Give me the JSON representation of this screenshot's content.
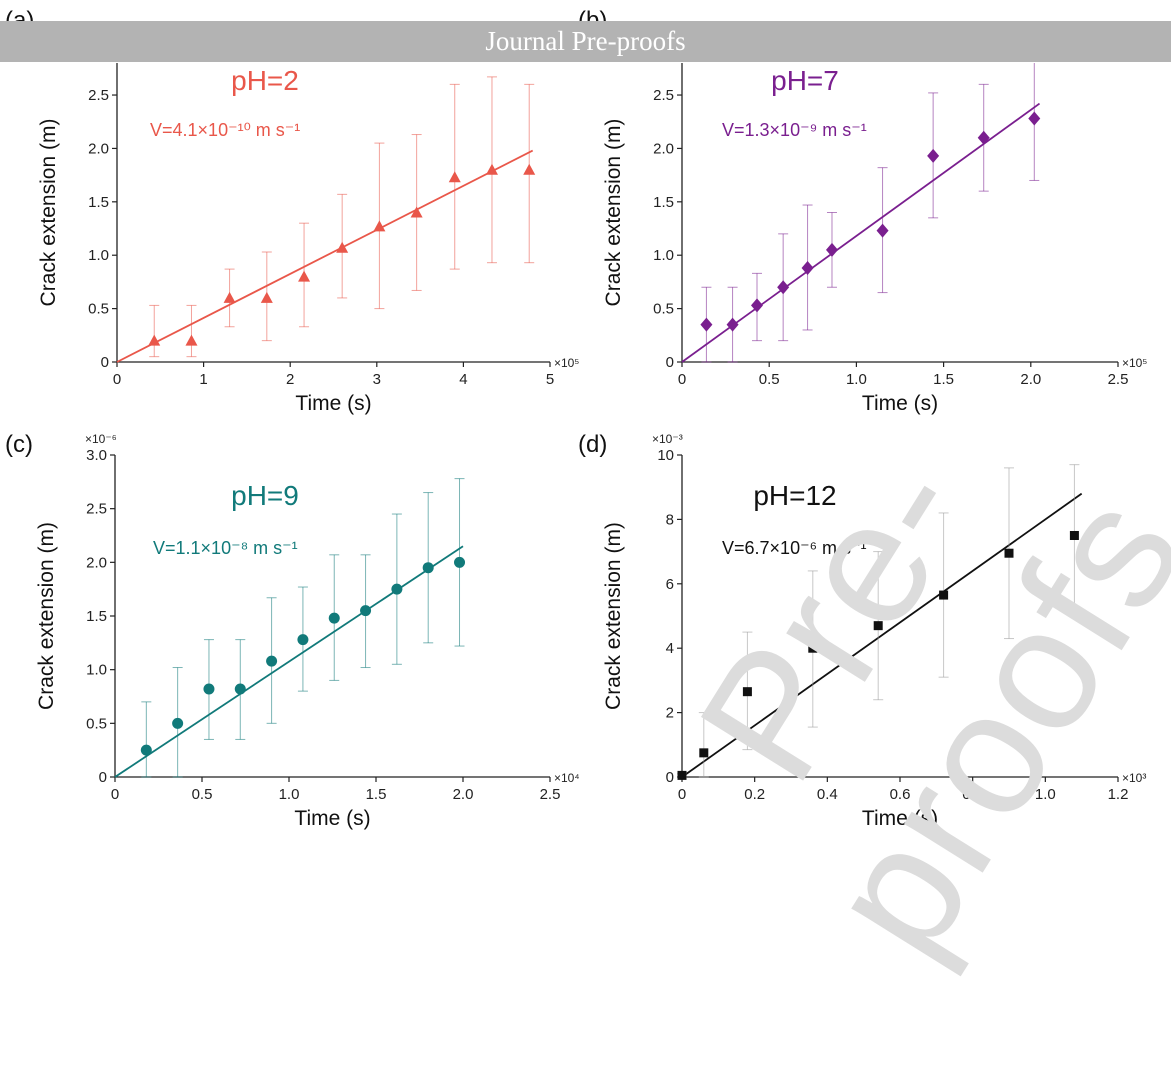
{
  "banner": "Journal Pre-proofs",
  "watermark": "Pre-proofs",
  "chart_data": [
    {
      "panel": "(a)",
      "type": "scatter",
      "annotation_title": "pH=2",
      "annotation_velocity": "V=4.1×10⁻¹⁰ m s⁻¹",
      "color": "#e9574a",
      "marker": "triangle",
      "xlabel": "Time (s)",
      "ylabel": "Crack extension (m)",
      "x_multiplier": "×10⁵",
      "y_multiplier": "",
      "xlim": [
        0,
        5
      ],
      "ylim": [
        0,
        2.8
      ],
      "xticks": [
        "0",
        "1",
        "2",
        "3",
        "4",
        "5"
      ],
      "yticks": [
        "0",
        "0.5",
        "1.0",
        "1.5",
        "2.0",
        "2.5"
      ],
      "xtick_values": [
        0,
        1,
        2,
        3,
        4,
        5
      ],
      "ytick_values": [
        0,
        0.5,
        1.0,
        1.5,
        2.0,
        2.5
      ],
      "points": {
        "x": [
          0.43,
          0.86,
          1.3,
          1.73,
          2.16,
          2.6,
          3.03,
          3.46,
          3.9,
          4.33,
          4.76
        ],
        "y": [
          0.2,
          0.2,
          0.6,
          0.6,
          0.8,
          1.07,
          1.27,
          1.4,
          1.73,
          1.8,
          1.8
        ],
        "yerr_low": [
          0.05,
          0.05,
          0.33,
          0.2,
          0.33,
          0.6,
          0.5,
          0.67,
          0.87,
          0.93,
          0.93
        ],
        "yerr_high": [
          0.53,
          0.53,
          0.87,
          1.03,
          1.3,
          1.57,
          2.05,
          2.13,
          2.6,
          2.67,
          2.6
        ]
      },
      "fit_line": {
        "x": [
          0,
          4.8
        ],
        "y": [
          0,
          1.98
        ]
      }
    },
    {
      "panel": "(b)",
      "type": "scatter",
      "annotation_title": "pH=7",
      "annotation_velocity": "V=1.3×10⁻⁹ m s⁻¹",
      "color": "#7a1f8f",
      "marker": "diamond",
      "xlabel": "Time (s)",
      "ylabel": "Crack extension (m)",
      "x_multiplier": "×10⁵",
      "y_multiplier": "",
      "xlim": [
        0,
        2.5
      ],
      "ylim": [
        0,
        2.8
      ],
      "xticks": [
        "0",
        "0.5",
        "1.0",
        "1.5",
        "2.0",
        "2.5"
      ],
      "yticks": [
        "0",
        "0.5",
        "1.0",
        "1.5",
        "2.0",
        "2.5"
      ],
      "xtick_values": [
        0,
        0.5,
        1.0,
        1.5,
        2.0,
        2.5
      ],
      "ytick_values": [
        0,
        0.5,
        1.0,
        1.5,
        2.0,
        2.5
      ],
      "points": {
        "x": [
          0.14,
          0.29,
          0.43,
          0.58,
          0.72,
          0.86,
          1.15,
          1.44,
          1.73,
          2.02
        ],
        "y": [
          0.35,
          0.35,
          0.53,
          0.7,
          0.88,
          1.05,
          1.23,
          1.93,
          2.1,
          2.28
        ],
        "yerr_low": [
          0.0,
          0.0,
          0.2,
          0.2,
          0.3,
          0.7,
          0.65,
          1.35,
          1.6,
          1.7
        ],
        "yerr_high": [
          0.7,
          0.7,
          0.83,
          1.2,
          1.47,
          1.4,
          1.82,
          2.52,
          2.6,
          2.85
        ]
      },
      "fit_line": {
        "x": [
          0,
          2.05
        ],
        "y": [
          0,
          2.42
        ]
      }
    },
    {
      "panel": "(c)",
      "type": "scatter",
      "annotation_title": "pH=9",
      "annotation_velocity": "V=1.1×10⁻⁸ m s⁻¹",
      "color": "#117a7a",
      "marker": "circle",
      "xlabel": "Time (s)",
      "ylabel": "Crack extension (m)",
      "x_multiplier": "×10⁴",
      "y_multiplier": "×10⁻⁶",
      "xlim": [
        0,
        2.5
      ],
      "ylim": [
        0,
        3.0
      ],
      "xticks": [
        "0",
        "0.5",
        "1.0",
        "1.5",
        "2.0",
        "2.5"
      ],
      "yticks": [
        "0",
        "0.5",
        "1.0",
        "1.5",
        "2.0",
        "2.5",
        "3.0"
      ],
      "xtick_values": [
        0,
        0.5,
        1.0,
        1.5,
        2.0,
        2.5
      ],
      "ytick_values": [
        0,
        0.5,
        1.0,
        1.5,
        2.0,
        2.5,
        3.0
      ],
      "points": {
        "x": [
          0.18,
          0.36,
          0.54,
          0.72,
          0.9,
          1.08,
          1.26,
          1.44,
          1.62,
          1.8,
          1.98
        ],
        "y": [
          0.25,
          0.5,
          0.82,
          0.82,
          1.08,
          1.28,
          1.48,
          1.55,
          1.75,
          1.95,
          2.0
        ],
        "yerr_low": [
          0.0,
          0.0,
          0.35,
          0.35,
          0.5,
          0.8,
          0.9,
          1.02,
          1.05,
          1.25,
          1.22
        ],
        "yerr_high": [
          0.7,
          1.02,
          1.28,
          1.28,
          1.67,
          1.77,
          2.07,
          2.07,
          2.45,
          2.65,
          2.78
        ]
      },
      "fit_line": {
        "x": [
          0,
          2.0
        ],
        "y": [
          0,
          2.15
        ]
      }
    },
    {
      "panel": "(d)",
      "type": "scatter",
      "annotation_title": "pH=12",
      "annotation_velocity": "V=6.7×10⁻⁶ m s⁻¹",
      "color": "#111111",
      "marker": "square",
      "xlabel": "Time (s)",
      "ylabel": "Crack extension (m)",
      "x_multiplier": "×10³",
      "y_multiplier": "×10⁻³",
      "xlim": [
        0,
        1.2
      ],
      "ylim": [
        0,
        10
      ],
      "xticks": [
        "0",
        "0.2",
        "0.4",
        "0.6",
        "0.8",
        "1.0",
        "1.2"
      ],
      "yticks": [
        "0",
        "2",
        "4",
        "6",
        "8",
        "10"
      ],
      "xtick_values": [
        0,
        0.2,
        0.4,
        0.6,
        0.8,
        1.0,
        1.2
      ],
      "ytick_values": [
        0,
        2,
        4,
        6,
        8,
        10
      ],
      "points": {
        "x": [
          0.0,
          0.06,
          0.18,
          0.36,
          0.54,
          0.72,
          0.9,
          1.08
        ],
        "y": [
          0.05,
          0.75,
          2.65,
          4.0,
          4.7,
          5.65,
          6.95,
          7.5
        ],
        "yerr_low": [
          0.0,
          0.0,
          0.85,
          1.55,
          2.4,
          3.1,
          4.3,
          5.3
        ],
        "yerr_high": [
          0.1,
          2.0,
          4.5,
          6.4,
          7.0,
          8.2,
          9.6,
          9.7
        ]
      },
      "fit_line": {
        "x": [
          0,
          1.1
        ],
        "y": [
          0,
          8.8
        ]
      }
    }
  ]
}
